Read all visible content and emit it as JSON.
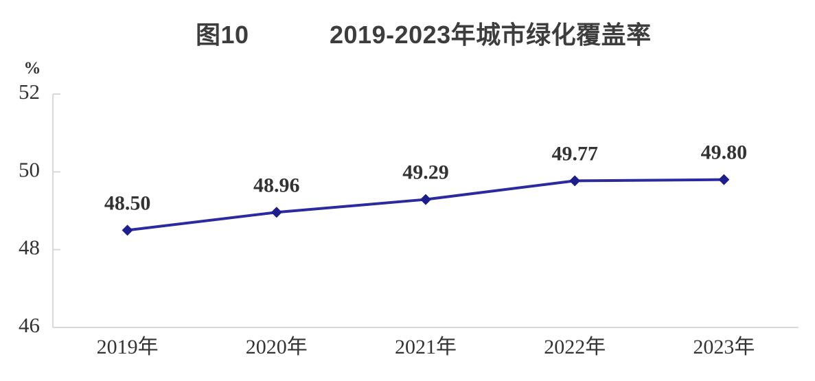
{
  "figure": {
    "tag": "图10",
    "title": "2019-2023年城市绿化覆盖率"
  },
  "chart_data": {
    "type": "line",
    "title": "图10 2019-2023年城市绿化覆盖率",
    "categories": [
      "2019年",
      "2020年",
      "2021年",
      "2022年",
      "2023年"
    ],
    "values": [
      48.5,
      48.96,
      49.29,
      49.77,
      49.8
    ],
    "point_labels": [
      "48.50",
      "48.96",
      "49.29",
      "49.77",
      "49.80"
    ],
    "series_name": "城市绿化覆盖率",
    "xlabel": "",
    "ylabel": "%",
    "y_ticks": [
      46,
      48,
      50,
      52
    ],
    "ylim": [
      46,
      52
    ],
    "grid": false,
    "legend_position": "none",
    "marker": "diamond",
    "line_color": "#2b2a9e",
    "marker_color": "#1e1d8c",
    "axis_color": "#d9d9d9",
    "text_color": "#333333",
    "title_color": "#3d3d3d"
  }
}
